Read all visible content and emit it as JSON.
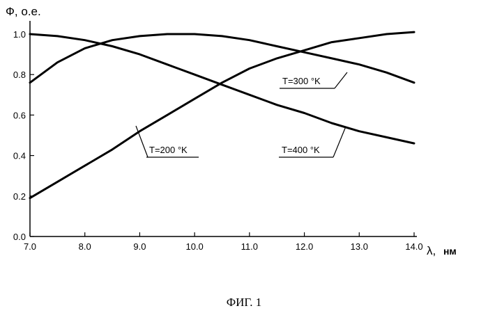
{
  "chart_data": {
    "type": "line",
    "ylabel": "Ф, о.е.",
    "xlabel": "λ,",
    "xlabel_unit": "нм",
    "xlim": [
      7.0,
      14.0
    ],
    "ylim": [
      0.0,
      1.05
    ],
    "x_ticks": [
      "7.0",
      "8.0",
      "9.0",
      "10.0",
      "11.0",
      "12.0",
      "13.0",
      "14.0"
    ],
    "y_ticks": [
      "0.0",
      "0.2",
      "0.4",
      "0.6",
      "0.8",
      "1.0"
    ],
    "grid": false,
    "series": [
      {
        "name": "T=200 °K",
        "x": [
          7.0,
          7.5,
          8.0,
          8.5,
          9.0,
          9.5,
          10.0,
          10.5,
          11.0,
          11.5,
          12.0,
          12.5,
          13.0,
          13.5,
          14.0
        ],
        "y": [
          0.19,
          0.27,
          0.35,
          0.43,
          0.52,
          0.6,
          0.68,
          0.76,
          0.83,
          0.88,
          0.92,
          0.96,
          0.98,
          1.0,
          1.01
        ]
      },
      {
        "name": "T=300 °K",
        "x": [
          7.0,
          7.5,
          8.0,
          8.5,
          9.0,
          9.5,
          10.0,
          10.5,
          11.0,
          11.5,
          12.0,
          12.5,
          13.0,
          13.5,
          14.0
        ],
        "y": [
          0.76,
          0.86,
          0.93,
          0.97,
          0.99,
          1.0,
          1.0,
          0.99,
          0.97,
          0.94,
          0.91,
          0.88,
          0.85,
          0.81,
          0.76
        ]
      },
      {
        "name": "T=400 °K",
        "x": [
          7.0,
          7.5,
          8.0,
          8.5,
          9.0,
          9.5,
          10.0,
          10.5,
          11.0,
          11.5,
          12.0,
          12.5,
          13.0,
          13.5,
          14.0
        ],
        "y": [
          1.0,
          0.99,
          0.97,
          0.94,
          0.9,
          0.85,
          0.8,
          0.75,
          0.7,
          0.65,
          0.61,
          0.56,
          0.52,
          0.49,
          0.46
        ]
      }
    ]
  },
  "caption": "ФИГ. 1"
}
